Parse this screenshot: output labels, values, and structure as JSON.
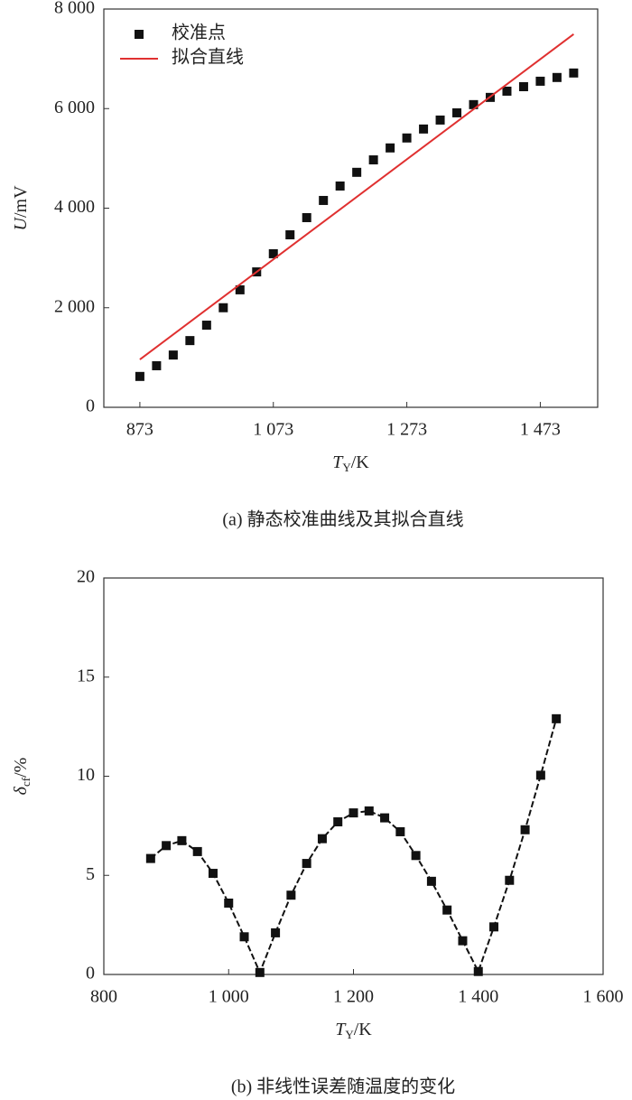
{
  "chart_data": [
    {
      "type": "scatter",
      "title": "(a) 静态校准曲线及其拟合直线",
      "x_label": {
        "symbol": "T",
        "subscript": "Y",
        "unit": "/K"
      },
      "y_label": {
        "symbol": "U",
        "unit": "/mV"
      },
      "xlim": [
        819,
        1559
      ],
      "ylim": [
        0,
        8000
      ],
      "xticks": [
        873,
        {
          "value": 1073,
          "label": "1 073"
        },
        {
          "value": 1273,
          "label": "1 273"
        },
        {
          "value": 1473,
          "label": "1 473"
        }
      ],
      "yticks": [
        0,
        {
          "value": 2000,
          "label": "2 000"
        },
        {
          "value": 4000,
          "label": "4 000"
        },
        {
          "value": 6000,
          "label": "6 000"
        },
        {
          "value": 8000,
          "label": "8 000"
        }
      ],
      "legend": "upper left",
      "series": [
        {
          "name": "校准点",
          "type": "scatter",
          "color": "#111111",
          "x": [
            873,
            898,
            923,
            948,
            973,
            998,
            1023,
            1048,
            1073,
            1098,
            1123,
            1148,
            1173,
            1198,
            1223,
            1248,
            1273,
            1298,
            1323,
            1348,
            1373,
            1398,
            1423,
            1448,
            1473,
            1498,
            1523
          ],
          "values": [
            620,
            835,
            1050,
            1340,
            1650,
            2000,
            2360,
            2720,
            3085,
            3465,
            3810,
            4155,
            4445,
            4720,
            4970,
            5210,
            5410,
            5590,
            5770,
            5915,
            6080,
            6225,
            6350,
            6440,
            6550,
            6625,
            6715
          ]
        },
        {
          "name": "拟合直线",
          "type": "line",
          "color": "#e03030",
          "x": [
            873,
            1523
          ],
          "values": [
            960,
            7495
          ]
        }
      ]
    },
    {
      "type": "line",
      "title": "(b) 非线性误差随温度的变化",
      "x_label": {
        "symbol": "T",
        "subscript": "Y",
        "unit": "/K"
      },
      "y_label": {
        "symbol": "δ",
        "subscript": "cf",
        "unit": "/%"
      },
      "xlim": [
        800,
        1600
      ],
      "ylim": [
        0,
        20
      ],
      "xticks": [
        800,
        {
          "value": 1000,
          "label": "1 000"
        },
        {
          "value": 1200,
          "label": "1 200"
        },
        {
          "value": 1400,
          "label": "1 400"
        },
        {
          "value": 1600,
          "label": "1 600"
        }
      ],
      "yticks": [
        0,
        5,
        10,
        15,
        20
      ],
      "series": [
        {
          "type": "line",
          "color": "#111111",
          "marker": "square",
          "line_style": "dashed",
          "x": [
            875,
            900,
            925,
            950,
            975,
            1000,
            1025,
            1050,
            1075,
            1100,
            1125,
            1150,
            1175,
            1200,
            1225,
            1250,
            1275,
            1300,
            1325,
            1350,
            1375,
            1400,
            1425,
            1450,
            1475,
            1500,
            1525
          ],
          "values": [
            5.85,
            6.5,
            6.75,
            6.2,
            5.1,
            3.6,
            1.9,
            0.1,
            2.1,
            4.0,
            5.6,
            6.85,
            7.7,
            8.15,
            8.25,
            7.9,
            7.2,
            6.0,
            4.7,
            3.25,
            1.7,
            0.15,
            2.4,
            4.75,
            7.3,
            10.05,
            12.9
          ]
        }
      ]
    }
  ]
}
